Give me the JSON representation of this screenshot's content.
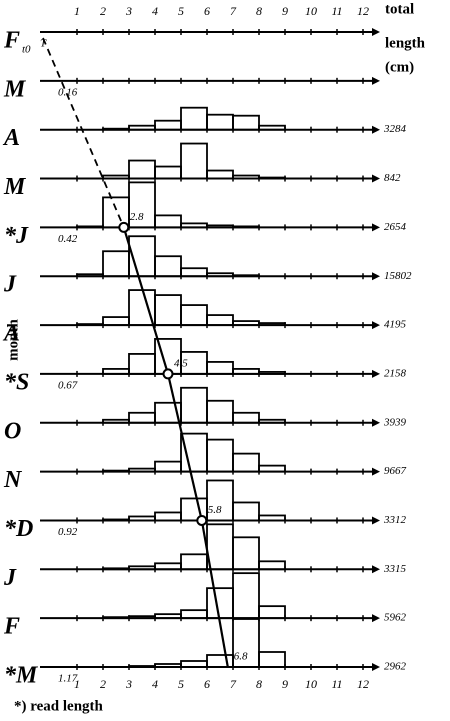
{
  "chart_data": {
    "type": "length-frequency",
    "x_label": [
      "total",
      "length",
      "(cm)"
    ],
    "y_label": "month",
    "footnote": "*) read length",
    "xlim": [
      0,
      12
    ],
    "xticks": [
      1,
      2,
      3,
      4,
      5,
      6,
      7,
      8,
      9,
      10,
      11,
      12
    ],
    "bins": [
      1,
      2,
      3,
      4,
      5,
      6,
      7,
      8,
      9
    ],
    "rows": [
      {
        "label": "F",
        "sub": "t0",
        "origin_label": "T"
      },
      {
        "label": "M",
        "age": "0.16"
      },
      {
        "label": "A",
        "n": 3284,
        "values": [
          0,
          1,
          4,
          9,
          22,
          15,
          14,
          4
        ]
      },
      {
        "label": "M",
        "n": 842,
        "values": [
          0,
          3,
          18,
          12,
          35,
          8,
          3,
          1
        ]
      },
      {
        "label": "*J",
        "n": 2654,
        "values": [
          1,
          30,
          45,
          12,
          4,
          2,
          1,
          0
        ],
        "age": "0.42",
        "read_length": 2.8
      },
      {
        "label": "J",
        "n": 15802,
        "values": [
          2,
          25,
          40,
          20,
          8,
          3,
          1,
          0
        ]
      },
      {
        "label": "A",
        "n": 4195,
        "values": [
          1,
          8,
          35,
          30,
          20,
          10,
          4,
          2
        ]
      },
      {
        "label": "*S",
        "n": 2158,
        "values": [
          0,
          5,
          20,
          35,
          22,
          12,
          5,
          2
        ],
        "age": "0.67",
        "read_length": 4.5
      },
      {
        "label": "O",
        "n": 3939,
        "values": [
          0,
          3,
          10,
          20,
          35,
          22,
          10,
          3
        ]
      },
      {
        "label": "N",
        "n": 9667,
        "values": [
          0,
          1,
          3,
          10,
          38,
          32,
          18,
          6
        ]
      },
      {
        "label": "*D",
        "n": 3312,
        "values": [
          0,
          1,
          4,
          8,
          22,
          40,
          18,
          5
        ],
        "age": "0.92",
        "read_length": 5.8
      },
      {
        "label": "J",
        "n": 3315,
        "values": [
          0,
          1,
          3,
          6,
          15,
          45,
          32,
          8
        ]
      },
      {
        "label": "F",
        "n": 5962,
        "values": [
          0,
          1,
          2,
          4,
          8,
          30,
          45,
          12
        ]
      },
      {
        "label": "*M",
        "n": 2962,
        "values": [
          0,
          0,
          1,
          3,
          6,
          12,
          48,
          15
        ],
        "age": "1.17",
        "read_length": 6.8
      }
    ]
  }
}
